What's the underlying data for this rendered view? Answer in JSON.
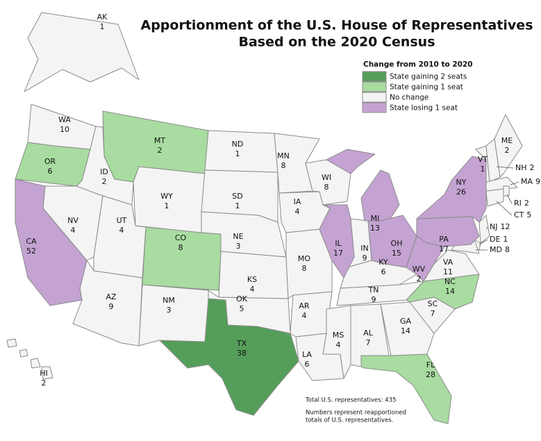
{
  "title": [
    "Apportionment of the U.S. House of Representatives",
    "Based on the 2020 Census"
  ],
  "legend": {
    "title": "Change from 2010 to 2020",
    "items": [
      {
        "label": "State gaining 2 seats",
        "color": "#559e5a",
        "states": [
          {
            "abbr": "TX",
            "seats": 38
          }
        ]
      },
      {
        "label": "State gaining 1 seat",
        "color": "#a8dca0",
        "states": [
          {
            "abbr": "OR",
            "seats": 6
          },
          {
            "abbr": "MT",
            "seats": 2
          },
          {
            "abbr": "CO",
            "seats": 8
          },
          {
            "abbr": "NC",
            "seats": 14
          },
          {
            "abbr": "FL",
            "seats": 28
          }
        ]
      },
      {
        "label": "No change",
        "color": "#f4f4f4",
        "states": [
          {
            "abbr": "AK",
            "seats": 1
          },
          {
            "abbr": "WA",
            "seats": 10
          },
          {
            "abbr": "NV",
            "seats": 4
          },
          {
            "abbr": "ID",
            "seats": 2
          },
          {
            "abbr": "WY",
            "seats": 1
          },
          {
            "abbr": "UT",
            "seats": 4
          },
          {
            "abbr": "AZ",
            "seats": 9
          },
          {
            "abbr": "NM",
            "seats": 3
          },
          {
            "abbr": "ND",
            "seats": 1
          },
          {
            "abbr": "SD",
            "seats": 1
          },
          {
            "abbr": "NE",
            "seats": 3
          },
          {
            "abbr": "KS",
            "seats": 4
          },
          {
            "abbr": "OK",
            "seats": 5
          },
          {
            "abbr": "MN",
            "seats": 8
          },
          {
            "abbr": "IA",
            "seats": 4
          },
          {
            "abbr": "MO",
            "seats": 8
          },
          {
            "abbr": "AR",
            "seats": 4
          },
          {
            "abbr": "LA",
            "seats": 6
          },
          {
            "abbr": "WI",
            "seats": 8
          },
          {
            "abbr": "IN",
            "seats": 9
          },
          {
            "abbr": "KY",
            "seats": 6
          },
          {
            "abbr": "TN",
            "seats": 9
          },
          {
            "abbr": "MS",
            "seats": 4
          },
          {
            "abbr": "AL",
            "seats": 7
          },
          {
            "abbr": "GA",
            "seats": 14
          },
          {
            "abbr": "SC",
            "seats": 7
          },
          {
            "abbr": "VA",
            "seats": 11
          },
          {
            "abbr": "ME",
            "seats": 2
          },
          {
            "abbr": "VT",
            "seats": 1
          },
          {
            "abbr": "NH",
            "seats": 2
          },
          {
            "abbr": "MA",
            "seats": 9
          },
          {
            "abbr": "RI",
            "seats": 2
          },
          {
            "abbr": "CT",
            "seats": 5
          },
          {
            "abbr": "NJ",
            "seats": 12
          },
          {
            "abbr": "DE",
            "seats": 1
          },
          {
            "abbr": "MD",
            "seats": 8
          },
          {
            "abbr": "HI",
            "seats": 2
          }
        ]
      },
      {
        "label": "State losing 1 seat",
        "color": "#c4a3d2",
        "states": [
          {
            "abbr": "CA",
            "seats": 52
          },
          {
            "abbr": "IL",
            "seats": 17
          },
          {
            "abbr": "MI",
            "seats": 13
          },
          {
            "abbr": "OH",
            "seats": 15
          },
          {
            "abbr": "PA",
            "seats": 17
          },
          {
            "abbr": "NY",
            "seats": 26
          },
          {
            "abbr": "WV",
            "seats": 2
          }
        ]
      }
    ]
  },
  "notes": [
    "Total U.S. representatives: 435",
    "Numbers represent reapportioned",
    "totals of U.S. representatives."
  ]
}
